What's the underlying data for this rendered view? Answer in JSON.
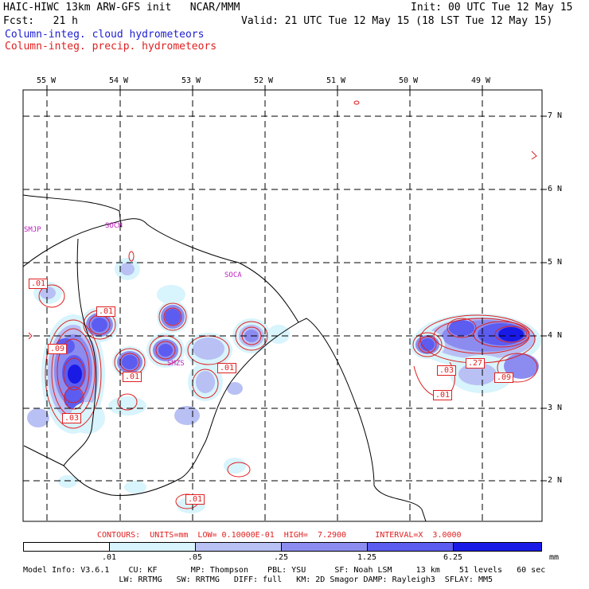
{
  "header": {
    "line1_left": "HAIC-HIWC 13km ARW-GFS init   NCAR/MMM",
    "line1_right": "Init: 00 UTC Tue 12 May 15",
    "line2_left": "Fcst:   21 h",
    "line2_right": "Valid: 21 UTC Tue 12 May 15 (18 LST Tue 12 May 15)",
    "field_cloud": "Column-integ. cloud hydrometeors",
    "field_precip": "Column-integ. precip. hydrometeors"
  },
  "colors": {
    "cloud_title": "#2020d0",
    "precip_title": "#e02020",
    "shade_1": "#d8f4fc",
    "shade_2": "#b8c0f4",
    "shade_3": "#8c8cf0",
    "shade_4": "#5c5cf0",
    "shade_5": "#1a1ae6",
    "contour": "#e02020",
    "station": "#c020c0"
  },
  "map": {
    "lon_labels": [
      "55 W",
      "54 W",
      "53 W",
      "52 W",
      "51 W",
      "50 W",
      "49 W"
    ],
    "lat_labels": [
      "7 N",
      "6 N",
      "5 N",
      "4 N",
      "3 N",
      "2 N"
    ],
    "stations": [
      "SMJP",
      "SOCM",
      "SOCA",
      "SMZS"
    ],
    "contour_labels": [
      ".01",
      ".01",
      ".09",
      ".01",
      ".01",
      ".03",
      ".03",
      ".27",
      ".09",
      ".01",
      ".01"
    ]
  },
  "contours_line": "CONTOURS:  UNITS=mm  LOW= 0.10000E-01  HIGH=  7.2900      INTERVAL=X  3.0000",
  "colorbar": {
    "labels": [
      ".01",
      ".05",
      ".25",
      "1.25",
      "6.25"
    ],
    "units": "mm"
  },
  "model_info": {
    "line1": "Model Info: V3.6.1    CU: KF       MP: Thompson    PBL: YSU      SF: Noah LSM     13 km    51 levels   60 sec",
    "line2": "                    LW: RRTMG   SW: RRTMG   DIFF: full   KM: 2D Smagor DAMP: Rayleigh3  SFLAY: MM5"
  }
}
